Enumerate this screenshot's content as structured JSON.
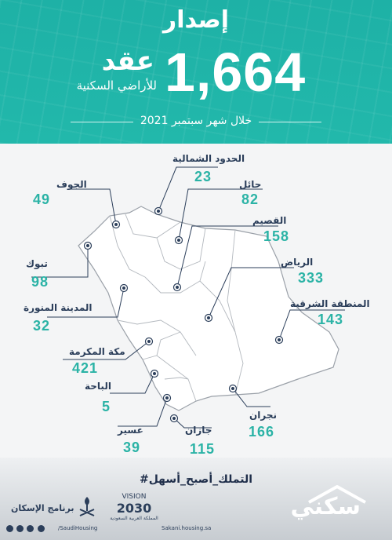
{
  "header": {
    "title": "إصدار",
    "number": "1,664",
    "contract_word": "عقد",
    "contract_sub": "للأراضي السكنية",
    "period": "خلال شهر سبتمبر 2021"
  },
  "colors": {
    "header_bg": "#22b8ab",
    "value_color": "#2bb3a6",
    "label_color": "#2b3e5a",
    "map_outline": "#9aa0a8"
  },
  "regions": [
    {
      "id": "northern-borders",
      "name": "الحدود الشمالية",
      "value": "23"
    },
    {
      "id": "jouf",
      "name": "الجوف",
      "value": "49"
    },
    {
      "id": "hail",
      "name": "حائل",
      "value": "82"
    },
    {
      "id": "qassim",
      "name": "القصيم",
      "value": "158"
    },
    {
      "id": "tabuk",
      "name": "تبوك",
      "value": "98"
    },
    {
      "id": "riyadh",
      "name": "الرياض",
      "value": "333"
    },
    {
      "id": "madinah",
      "name": "المدينة المنورة",
      "value": "32"
    },
    {
      "id": "eastern",
      "name": "المنطقة الشرقية",
      "value": "143"
    },
    {
      "id": "makkah",
      "name": "مكة المكرمة",
      "value": "421"
    },
    {
      "id": "baha",
      "name": "الباحة",
      "value": "5"
    },
    {
      "id": "najran",
      "name": "نجران",
      "value": "166"
    },
    {
      "id": "asir",
      "name": "عسير",
      "value": "39"
    },
    {
      "id": "jazan",
      "name": "جازان",
      "value": "115"
    }
  ],
  "footer": {
    "hashtag": "#التملك_أصبح_أسهل",
    "brand": "سكني",
    "vision_label": "VISION",
    "vision_year": "2030",
    "vision_sub": "المملكة العربية السعودية",
    "program": "برنامج الإسكان",
    "handle_left": "/SaudiHousing",
    "handle_right": "Sakani.housing.sa"
  }
}
